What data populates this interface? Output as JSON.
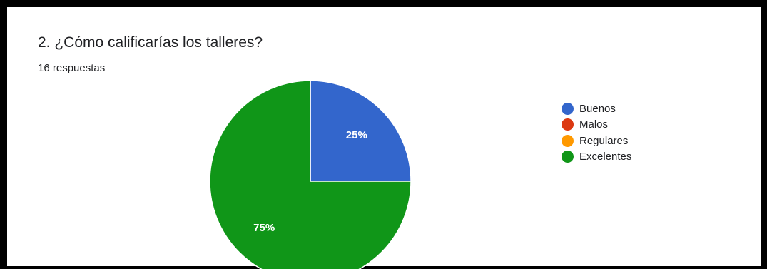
{
  "question": {
    "title": "2. ¿Cómo calificarías los talleres?",
    "responses": "16 respuestas"
  },
  "chart_data": {
    "type": "pie",
    "categories": [
      "Buenos",
      "Malos",
      "Regulares",
      "Excelentes"
    ],
    "values": [
      25,
      0,
      0,
      75
    ],
    "labels": [
      "25%",
      "",
      "",
      "75%"
    ],
    "colors": [
      "#3366cc",
      "#dc3912",
      "#ff9900",
      "#109618"
    ],
    "legend_position": "right"
  }
}
